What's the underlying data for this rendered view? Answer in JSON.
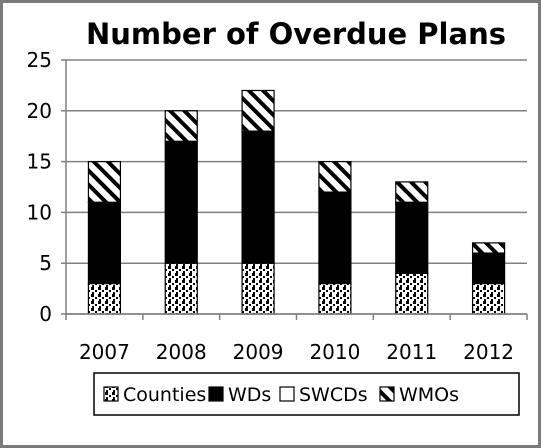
{
  "chart_data": {
    "type": "bar",
    "stacked": true,
    "title": "Number of Overdue Plans",
    "categories": [
      "2007",
      "2008",
      "2009",
      "2010",
      "2011",
      "2012"
    ],
    "ylim": [
      0,
      25
    ],
    "yticks": [
      "0",
      "5",
      "10",
      "15",
      "20",
      "25"
    ],
    "grid": true,
    "legend_position": "bottom",
    "series": [
      {
        "name": "Counties",
        "values": [
          3,
          5,
          5,
          3,
          4,
          3
        ],
        "pattern": "dotted"
      },
      {
        "name": "WDs",
        "values": [
          8,
          12,
          13,
          9,
          7,
          3
        ],
        "pattern": "solid-black"
      },
      {
        "name": "SWCDs",
        "values": [
          0,
          0,
          0,
          0,
          0,
          0
        ],
        "pattern": "white"
      },
      {
        "name": "WMOs",
        "values": [
          4,
          3,
          4,
          3,
          2,
          1
        ],
        "pattern": "diagonal-hatch"
      }
    ],
    "colors": {
      "border": "#000000",
      "grid": "#808080",
      "frame": "#7a7a7a"
    }
  }
}
